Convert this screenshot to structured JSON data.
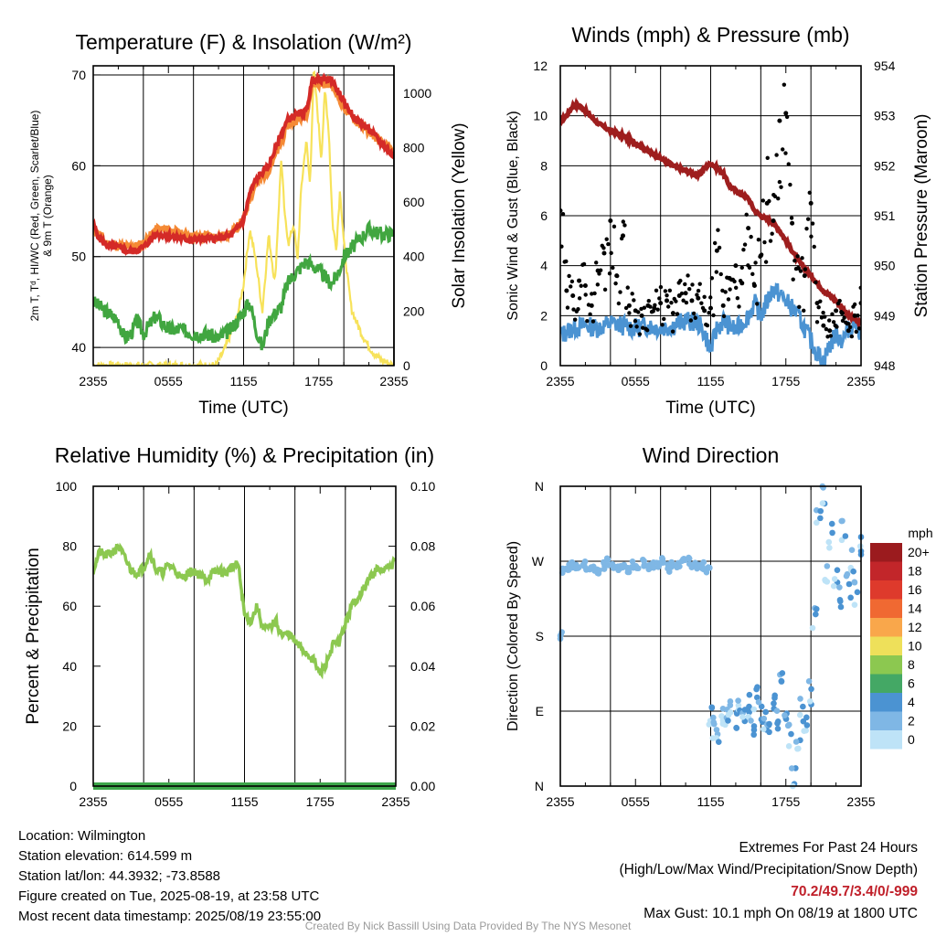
{
  "credit": "Created By Nick Bassill Using Data Provided By The NYS Mesonet",
  "info": {
    "location": "Location: Wilmington",
    "elevation": "Station elevation: 614.599 m",
    "latlon": "Station lat/lon: 44.3932; -73.8588",
    "created": "Figure created on Tue, 2025-08-19, at 23:58 UTC",
    "recent": "Most recent data timestamp: 2025/08/19 23:55:00",
    "extremes_title": "Extremes For Past 24 Hours",
    "extremes_fields": "(High/Low/Max Wind/Precipitation/Snow Depth)",
    "extremes_values": "70.2/49.7/3.4/0/-999",
    "max_gust": "Max Gust: 10.1 mph On 08/19 at 1800 UTC"
  },
  "colors": {
    "temp": "#d42a27",
    "temp9m": "#f58a35",
    "dewpoint": "#41a640",
    "solar": "#f7e25a",
    "wind": "#4b93d2",
    "gust": "#000000",
    "pressure": "#9e1e1e",
    "rh": "#8cc850",
    "precip": "#3da64a"
  },
  "chart_data": [
    {
      "type": "line",
      "title": "Temperature (F) & Insolation (W/m²)",
      "xlabel": "Time (UTC)",
      "ylabel": "2m T, Tᵈ, HI/WC (Red, Green, Scarlet/Blue) & 9m T (Orange)",
      "y2label": "Solar Insolation (Yellow)",
      "xticks": [
        "2355",
        "0555",
        "1155",
        "1755",
        "2355"
      ],
      "xlim": [
        0,
        24
      ],
      "ylim": [
        38,
        71
      ],
      "y2lim": [
        0,
        1100
      ],
      "yticks": [
        40,
        50,
        60,
        70
      ],
      "y2ticks": [
        0,
        200,
        400,
        600,
        800,
        1000
      ],
      "grid": true,
      "series": [
        {
          "name": "2m T",
          "axis": "left",
          "x": [
            0,
            0.5,
            1,
            2,
            3,
            4,
            5,
            6,
            7,
            8,
            9,
            10,
            11,
            12,
            12.5,
            13,
            14,
            15,
            15.5,
            16,
            17,
            17.5,
            18,
            19,
            20,
            21,
            22,
            23,
            24
          ],
          "y": [
            53.5,
            52,
            51.3,
            51,
            50.5,
            51,
            52.5,
            52.3,
            52,
            51.8,
            52,
            52,
            52.3,
            54,
            57,
            58.5,
            60,
            63.5,
            65,
            65.5,
            66,
            69.5,
            69.5,
            69.5,
            67,
            65,
            64,
            62.5,
            61
          ]
        },
        {
          "name": "9m T",
          "axis": "left",
          "x": [
            0,
            0.5,
            1,
            2,
            3,
            4,
            5,
            6,
            7,
            8,
            9,
            10,
            11,
            12,
            12.5,
            13,
            14,
            15,
            15.5,
            16,
            17,
            17.5,
            18,
            19,
            20,
            21,
            22,
            23,
            24
          ],
          "y": [
            53,
            52.5,
            51.5,
            51.2,
            51,
            51.5,
            53,
            53,
            52.5,
            52.2,
            52.3,
            52.2,
            52.5,
            54,
            56.5,
            58,
            59.5,
            62.5,
            64.5,
            65,
            65.5,
            69,
            69,
            69,
            66.5,
            64.8,
            63.8,
            62.5,
            61.5
          ]
        },
        {
          "name": "Dewpoint",
          "axis": "left",
          "x": [
            0,
            0.5,
            1,
            2,
            2.5,
            3,
            3.5,
            4,
            5,
            6,
            7,
            8,
            9,
            10,
            11,
            12,
            12.5,
            13,
            13.5,
            14,
            15,
            15.5,
            16,
            17,
            18,
            19,
            19.5,
            20,
            21,
            22,
            23,
            24
          ],
          "y": [
            45,
            44.5,
            44,
            43,
            41,
            41.5,
            43,
            41.5,
            43.5,
            42,
            42,
            41.5,
            41.5,
            41,
            42,
            44,
            45,
            42,
            40,
            43,
            44.5,
            47,
            48,
            49.5,
            48.5,
            47,
            48,
            50,
            51.5,
            53,
            52.5,
            52.5
          ]
        },
        {
          "name": "Solar Insolation",
          "axis": "right",
          "x": [
            0,
            9.8,
            10.5,
            11,
            11.5,
            12,
            12.5,
            13,
            13.5,
            14,
            14.5,
            15,
            15.3,
            15.6,
            16,
            16.3,
            16.6,
            17,
            17.3,
            17.6,
            17.9,
            18.2,
            18.5,
            18.8,
            19.1,
            19.4,
            19.7,
            20,
            20.3,
            20.6,
            21,
            21.5,
            22,
            22.5,
            23,
            23.5,
            24
          ],
          "y": [
            0,
            0,
            60,
            120,
            180,
            300,
            500,
            380,
            200,
            480,
            300,
            760,
            540,
            450,
            520,
            380,
            650,
            830,
            660,
            1090,
            930,
            760,
            1010,
            860,
            520,
            430,
            650,
            450,
            320,
            210,
            160,
            110,
            70,
            40,
            20,
            10,
            0
          ]
        }
      ]
    },
    {
      "type": "line",
      "title": "Winds (mph) & Pressure (mb)",
      "xlabel": "Time (UTC)",
      "ylabel": "Sonic Wind & Gust (Blue, Black)",
      "y2label": "Station Pressure (Maroon)",
      "xticks": [
        "2355",
        "0555",
        "1155",
        "1755",
        "2355"
      ],
      "xlim": [
        0,
        24
      ],
      "ylim": [
        0,
        12
      ],
      "y2lim": [
        948,
        954
      ],
      "yticks": [
        0,
        2,
        4,
        6,
        8,
        10,
        12
      ],
      "y2ticks": [
        948,
        949,
        950,
        951,
        952,
        953,
        954
      ],
      "grid": true,
      "series": [
        {
          "name": "Station Pressure",
          "axis": "right",
          "x": [
            0,
            0.5,
            1,
            1.5,
            2,
            3,
            4,
            5,
            6,
            7,
            8,
            9,
            10,
            11,
            11.5,
            12,
            13,
            13.5,
            14,
            15,
            15.5,
            16,
            17,
            17.5,
            18,
            19,
            20,
            21,
            22,
            23,
            24
          ],
          "y": [
            952.9,
            953,
            953.2,
            953.2,
            953.1,
            952.85,
            952.7,
            952.6,
            952.45,
            952.3,
            952.15,
            952,
            951.9,
            951.8,
            951.95,
            952.05,
            951.85,
            951.6,
            951.5,
            951.35,
            951.1,
            951,
            950.85,
            950.7,
            950.5,
            950.1,
            949.8,
            949.5,
            949.3,
            949.0,
            948.85
          ]
        },
        {
          "name": "Sonic Wind",
          "axis": "left",
          "x": [
            0,
            1,
            2,
            3,
            4,
            5,
            6,
            7,
            8,
            9,
            10,
            11,
            11.5,
            12,
            12.5,
            13,
            14,
            15,
            15.5,
            16,
            17,
            18,
            19,
            19.5,
            20,
            20.5,
            21,
            21.5,
            22,
            22.5,
            23,
            23.5,
            24
          ],
          "y": [
            1.2,
            1.5,
            1.6,
            1.5,
            1.7,
            1.6,
            1.5,
            1.6,
            1.5,
            1.6,
            1.8,
            1.7,
            1.3,
            0.6,
            1.5,
            1.8,
            1.4,
            2.0,
            2.5,
            2.0,
            3.1,
            2.6,
            2.0,
            1.5,
            1.0,
            0.5,
            0.2,
            0.8,
            1.3,
            1.0,
            1.5,
            1.8,
            1.3
          ]
        },
        {
          "name": "Gust",
          "axis": "left",
          "style": "points",
          "x": [
            0,
            0.5,
            1,
            1.5,
            2,
            2.5,
            3,
            3.5,
            4,
            4.5,
            5,
            5.5,
            6,
            6.5,
            7,
            7.5,
            8,
            8.5,
            9,
            9.5,
            10,
            10.5,
            11,
            11.5,
            12,
            12.5,
            13,
            13.5,
            14,
            14.5,
            15,
            15.5,
            16,
            16.5,
            17,
            17.5,
            18,
            18.5,
            19,
            19.5,
            20,
            20.5,
            21,
            21.5,
            22,
            22.5,
            23,
            23.5,
            24
          ],
          "y": [
            6.2,
            3.0,
            2.8,
            3.4,
            3.2,
            2.4,
            3.8,
            4.5,
            5.8,
            3.6,
            5.2,
            2.4,
            2.2,
            2.0,
            2.4,
            2.3,
            2.5,
            2.6,
            2.1,
            2.8,
            2.9,
            2.6,
            2.7,
            2.2,
            2.3,
            4.6,
            2.4,
            3.5,
            4.0,
            3.3,
            5.5,
            3.2,
            4.4,
            6.5,
            5.8,
            9.8,
            10.1,
            5.7,
            3.9,
            3.6,
            6.5,
            2.5,
            1.6,
            1.4,
            2.2,
            2.1,
            1.4,
            2.0,
            2.5
          ]
        }
      ]
    },
    {
      "type": "line",
      "title": "Relative Humidity (%) & Precipitation (in)",
      "xlabel": "",
      "ylabel": "Percent & Precipitation",
      "xticks": [
        "2355",
        "0555",
        "1155",
        "1755",
        "2355"
      ],
      "xlim": [
        0,
        24
      ],
      "ylim": [
        0,
        100
      ],
      "y2lim": [
        0,
        0.1
      ],
      "yticks": [
        0,
        20,
        40,
        60,
        80,
        100
      ],
      "y2ticks": [
        "0.00",
        "0.02",
        "0.04",
        "0.06",
        "0.08",
        "0.10"
      ],
      "grid": true,
      "series": [
        {
          "name": "Relative Humidity",
          "axis": "left",
          "x": [
            0,
            0.5,
            1,
            1.5,
            2,
            2.5,
            3,
            3.5,
            4,
            4.5,
            5,
            5.5,
            6,
            6.5,
            7,
            7.5,
            8,
            8.5,
            9,
            9.5,
            10,
            10.5,
            11,
            11.5,
            12,
            12.5,
            13,
            13.5,
            14,
            14.5,
            15,
            15.5,
            16,
            16.5,
            17,
            17.5,
            18,
            18.5,
            19,
            19.5,
            20,
            20.5,
            21,
            21.5,
            22,
            22.5,
            23,
            23.5,
            24
          ],
          "y": [
            72,
            78,
            77,
            78,
            80,
            76,
            72,
            71,
            73,
            78,
            72,
            71,
            74,
            72,
            69,
            71,
            72,
            70,
            69,
            71,
            72,
            71,
            73,
            74,
            57,
            55,
            60,
            52,
            53,
            55,
            50,
            51,
            48,
            46,
            44,
            42,
            37,
            41,
            47,
            48,
            54,
            60,
            63,
            66,
            70,
            72,
            72,
            73,
            75
          ]
        },
        {
          "name": "Precipitation",
          "axis": "right",
          "x": [
            0,
            24
          ],
          "y": [
            0,
            0
          ]
        }
      ]
    },
    {
      "type": "scatter",
      "title": "Wind Direction",
      "xlabel": "",
      "ylabel": "Direction (Colored By Speed)",
      "xticks": [
        "2355",
        "0555",
        "1155",
        "1755",
        "2355"
      ],
      "xlim": [
        0,
        24
      ],
      "ylim": [
        0,
        360
      ],
      "ytick_values": [
        0,
        90,
        180,
        270,
        360
      ],
      "yticks": [
        "N",
        "E",
        "S",
        "W",
        "N"
      ],
      "grid": true,
      "legend": {
        "title": "mph",
        "labels": [
          "20+",
          "18",
          "16",
          "14",
          "12",
          "10",
          "8",
          "6",
          "4",
          "2",
          "0"
        ],
        "colors": [
          "#9b1b1e",
          "#c2262a",
          "#de3a2c",
          "#f06932",
          "#f9a74b",
          "#eee05a",
          "#8cc850",
          "#44a865",
          "#4b93d2",
          "#7fb7e5",
          "#bee3f7"
        ]
      },
      "series": [
        {
          "name": "Direction",
          "x": [
            0,
            0.3,
            0.6,
            1,
            1.4,
            1.8,
            2.2,
            2.6,
            3,
            3.4,
            3.8,
            4.2,
            4.6,
            5,
            5.4,
            5.8,
            6.2,
            6.6,
            7,
            7.4,
            7.8,
            8.2,
            8.6,
            9,
            9.4,
            9.8,
            10.2,
            10.6,
            11,
            11.4,
            11.8,
            12,
            12.3,
            12.6,
            13,
            13.3,
            13.6,
            14,
            14.3,
            14.6,
            15,
            15.3,
            15.6,
            16,
            16.3,
            16.6,
            17,
            17.3,
            17.6,
            18,
            18.3,
            18.6,
            19,
            19.3,
            19.6,
            20,
            20.3,
            20.6,
            21,
            21.3,
            21.6,
            22,
            22.3,
            22.6,
            23,
            23.3,
            23.6,
            24
          ],
          "y": [
            180,
            258,
            262,
            266,
            262,
            268,
            260,
            262,
            258,
            264,
            270,
            266,
            262,
            264,
            258,
            266,
            262,
            268,
            262,
            266,
            264,
            270,
            262,
            266,
            264,
            268,
            270,
            266,
            262,
            264,
            260,
            84,
            72,
            60,
            88,
            80,
            92,
            76,
            100,
            84,
            96,
            70,
            106,
            90,
            74,
            64,
            96,
            80,
            126,
            76,
            60,
            8,
            50,
            90,
            68,
            112,
            200,
            320,
            350,
            260,
            300,
            250,
            228,
            310,
            240,
            270,
            232,
            290
          ]
        }
      ]
    }
  ]
}
